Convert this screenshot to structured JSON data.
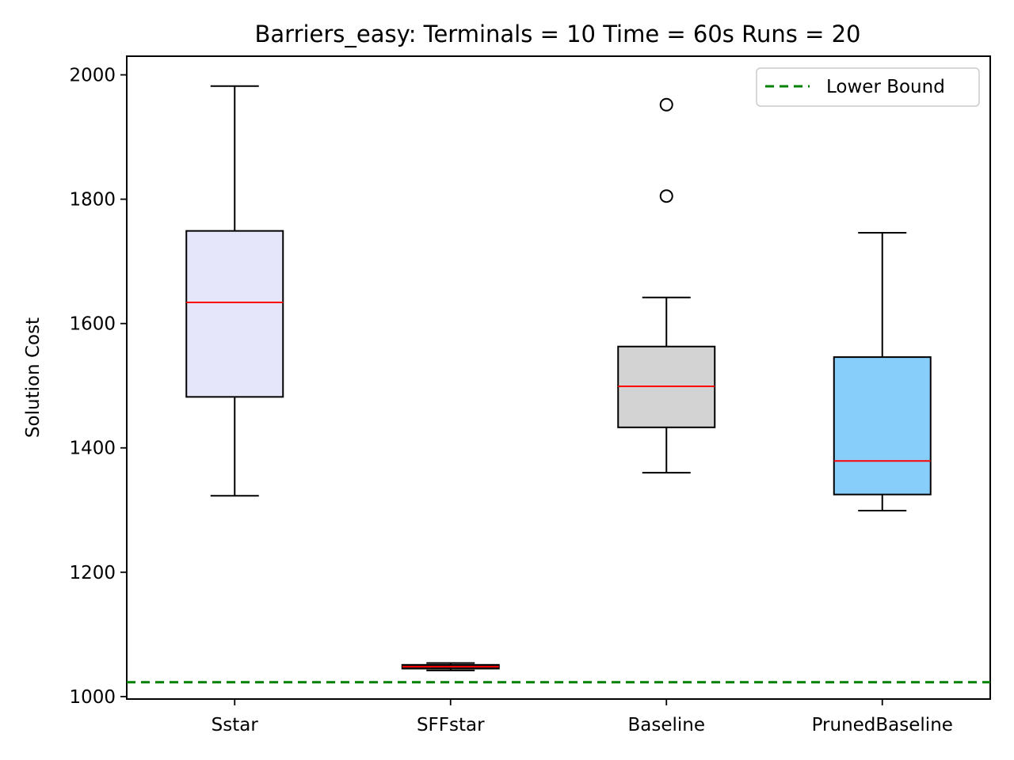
{
  "chart_data": {
    "type": "box",
    "title": "Barriers_easy:  Terminals = 10  Time = 60s  Runs = 20",
    "xlabel": "",
    "ylabel": "Solution Cost",
    "ylim": [
      996,
      2030
    ],
    "yticks": [
      1000,
      1200,
      1400,
      1600,
      1800,
      2000
    ],
    "categories": [
      "Sstar",
      "SFFstar",
      "Baseline",
      "PrunedBaseline"
    ],
    "boxes": [
      {
        "label": "Sstar",
        "color": "#e6e6fa",
        "whisker_low": 1323,
        "q1": 1482,
        "median": 1634,
        "q3": 1749,
        "whisker_high": 1982,
        "fliers": []
      },
      {
        "label": "SFFstar",
        "color": "#2f2f2f",
        "whisker_low": 1042,
        "q1": 1045,
        "median": 1048,
        "q3": 1051,
        "whisker_high": 1054,
        "fliers": []
      },
      {
        "label": "Baseline",
        "color": "#d3d3d3",
        "whisker_low": 1360,
        "q1": 1433,
        "median": 1499,
        "q3": 1563,
        "whisker_high": 1642,
        "fliers": [
          1805,
          1952
        ]
      },
      {
        "label": "PrunedBaseline",
        "color": "#87cefa",
        "whisker_low": 1299,
        "q1": 1325,
        "median": 1379,
        "q3": 1546,
        "whisker_high": 1746,
        "fliers": []
      }
    ],
    "lower_bound": {
      "label": "Lower Bound",
      "value": 1023,
      "color": "#008000"
    },
    "median_color": "#ff0000",
    "grid": false,
    "legend_position": "top-right"
  }
}
